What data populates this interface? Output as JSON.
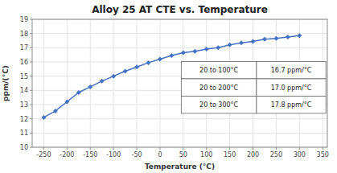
{
  "chart_data": {
    "type": "line",
    "title": "Alloy 25 AT CTE vs. Temperature",
    "x_label": "Temperature (°C)",
    "y_label": "ppm/(°C)",
    "x": [
      -250,
      -225,
      -200,
      -175,
      -150,
      -125,
      -100,
      -75,
      -50,
      -25,
      0,
      25,
      50,
      75,
      100,
      125,
      150,
      175,
      200,
      225,
      250,
      275,
      300
    ],
    "values": [
      12.1,
      12.55,
      13.2,
      13.85,
      14.25,
      14.65,
      15.0,
      15.35,
      15.65,
      15.95,
      16.2,
      16.45,
      16.65,
      16.75,
      16.9,
      17.0,
      17.2,
      17.35,
      17.45,
      17.6,
      17.65,
      17.75,
      17.85
    ],
    "color": "#4472C4",
    "marker": "diamond",
    "xlim": [
      -275,
      360
    ],
    "ylim": [
      10,
      19
    ],
    "xticks": [
      -250,
      -200,
      -150,
      -100,
      -50,
      0,
      50,
      100,
      150,
      200,
      250,
      300,
      350
    ],
    "yticks": [
      10,
      11,
      12,
      13,
      14,
      15,
      16,
      17,
      18,
      19
    ],
    "grid": true,
    "annotations": [
      [
        "20 to 100°C",
        "16.7 ppm/°C"
      ],
      [
        "20 to 200°C",
        "17.0 ppm/°C"
      ],
      [
        "20 to 300°C",
        "17.8 ppm/°C"
      ]
    ]
  }
}
